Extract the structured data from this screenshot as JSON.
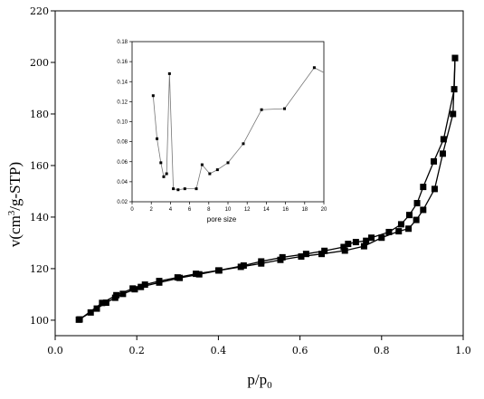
{
  "chart_data": [
    {
      "type": "line",
      "xlabel": "p/p",
      "xlabel_sub": "0",
      "ylabel": "v(cm",
      "ylabel_sup": "3",
      "ylabel_rest": "/g-STP)",
      "xlim": [
        0.0,
        1.0
      ],
      "ylim": [
        94,
        220
      ],
      "x_ticks": [
        "0.0",
        "0.2",
        "0.4",
        "0.6",
        "0.8",
        "1.0"
      ],
      "x_tick_values": [
        0.0,
        0.2,
        0.4,
        0.6,
        0.8,
        1.0
      ],
      "y_ticks": [
        "100",
        "120",
        "140",
        "160",
        "180",
        "200",
        "220"
      ],
      "y_tick_values": [
        100,
        120,
        140,
        160,
        180,
        200,
        220
      ],
      "grid": false,
      "series": [
        {
          "x": [
            0.058,
            0.087,
            0.102,
            0.125,
            0.147,
            0.166,
            0.195,
            0.21,
            0.255,
            0.305,
            0.353,
            0.402,
            0.455,
            0.505,
            0.552,
            0.603,
            0.653,
            0.71,
            0.757,
            0.8,
            0.842,
            0.866,
            0.885,
            0.902,
            0.93,
            0.95,
            0.975,
            0.98
          ],
          "y": [
            100.2,
            103.0,
            104.5,
            106.8,
            108.7,
            110.2,
            112.0,
            112.9,
            114.6,
            116.4,
            117.8,
            119.3,
            120.7,
            122.0,
            123.4,
            124.7,
            125.7,
            127.0,
            128.7,
            132.0,
            134.5,
            135.5,
            138.9,
            142.8,
            150.9,
            164.6,
            180.0,
            201.7
          ]
        },
        {
          "x": [
            0.98,
            0.978,
            0.952,
            0.928,
            0.902,
            0.887,
            0.868,
            0.848,
            0.818,
            0.775,
            0.762,
            0.737,
            0.718,
            0.707,
            0.66,
            0.615,
            0.557,
            0.505,
            0.462,
            0.4,
            0.345,
            0.3,
            0.255,
            0.22,
            0.19,
            0.15,
            0.115,
            0.06
          ],
          "y": [
            201.7,
            189.6,
            170.2,
            161.6,
            151.7,
            145.4,
            140.8,
            137.2,
            134.2,
            132.0,
            130.8,
            130.3,
            129.6,
            128.4,
            126.9,
            125.7,
            124.4,
            122.8,
            121.2,
            119.3,
            118.0,
            116.6,
            115.2,
            113.8,
            112.3,
            109.7,
            106.7,
            100.3
          ]
        }
      ]
    },
    {
      "type": "line",
      "xlabel": "pore size",
      "ylabel": "",
      "xlim": [
        0,
        20
      ],
      "ylim": [
        0.02,
        0.18
      ],
      "x_ticks": [
        "0",
        "2",
        "4",
        "6",
        "8",
        "10",
        "12",
        "14",
        "16",
        "18",
        "20"
      ],
      "x_tick_values": [
        0,
        2,
        4,
        6,
        8,
        10,
        12,
        14,
        16,
        18,
        20
      ],
      "y_ticks": [
        "0.02",
        "0.04",
        "0.06",
        "0.08",
        "0.10",
        "0.12",
        "0.14",
        "0.16",
        "0.18"
      ],
      "y_tick_values": [
        0.02,
        0.04,
        0.06,
        0.08,
        0.1,
        0.12,
        0.14,
        0.16,
        0.18
      ],
      "grid": false,
      "series": [
        {
          "x": [
            2.2,
            2.6,
            3.0,
            3.3,
            3.6,
            3.9,
            4.3,
            4.8,
            5.5,
            6.7,
            7.3,
            8.1,
            8.9,
            10.0,
            11.6,
            13.5,
            15.9,
            19.0,
            20.0
          ],
          "y": [
            0.126,
            0.083,
            0.059,
            0.045,
            0.048,
            0.148,
            0.033,
            0.032,
            0.033,
            0.033,
            0.057,
            0.048,
            0.052,
            0.059,
            0.078,
            0.112,
            0.113,
            0.154,
            0.149
          ],
          "markers": [
            true,
            true,
            true,
            true,
            true,
            true,
            true,
            true,
            true,
            true,
            true,
            true,
            true,
            true,
            true,
            true,
            true,
            true,
            false
          ]
        }
      ]
    }
  ]
}
